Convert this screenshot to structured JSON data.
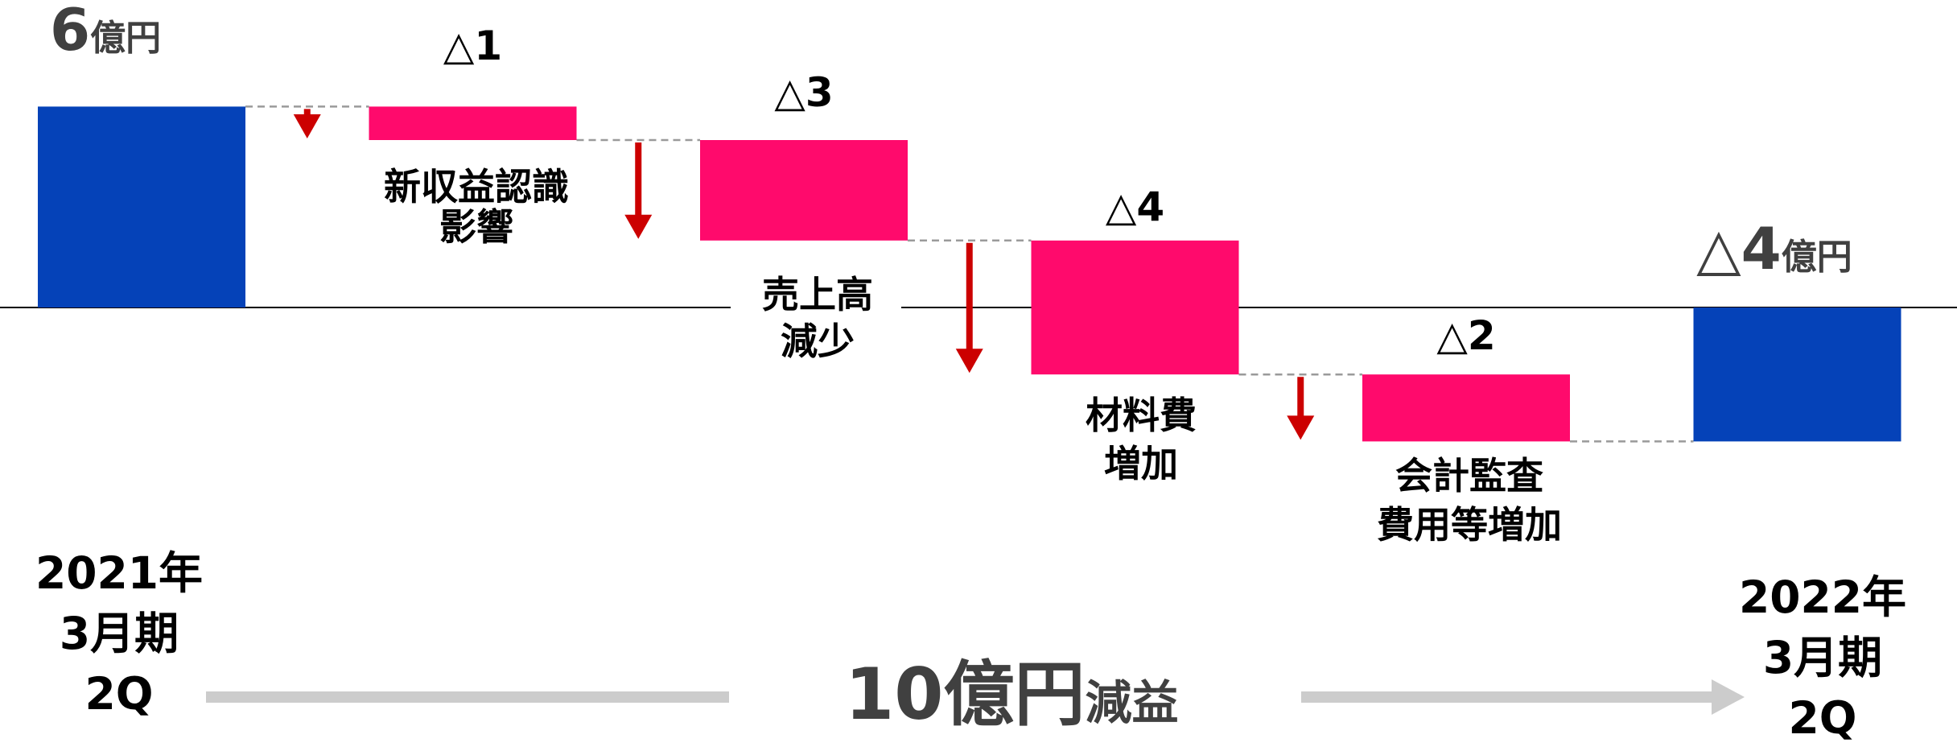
{
  "chart_data": {
    "type": "bar",
    "subtype": "waterfall",
    "unit": "億円",
    "categories": [
      "2021年3月期2Q",
      "新収益認識影響",
      "売上高減少",
      "材料費増加",
      "会計監査費用等増加",
      "2022年3月期2Q"
    ],
    "steps": [
      {
        "kind": "total",
        "value": 6,
        "value_label_number": "6",
        "value_label_unit": "億円",
        "label_lines": [
          "2021年",
          "3月期",
          "2Q"
        ]
      },
      {
        "kind": "delta",
        "value": -1,
        "value_label": "△1",
        "label_lines": [
          "新収益認識",
          "影響"
        ]
      },
      {
        "kind": "delta",
        "value": -3,
        "value_label": "△3",
        "label_lines": [
          "売上高",
          "減少"
        ]
      },
      {
        "kind": "delta",
        "value": -4,
        "value_label": "△4",
        "label_lines": [
          "材料費",
          "増加"
        ]
      },
      {
        "kind": "delta",
        "value": -2,
        "value_label": "△2",
        "label_lines": [
          "会計監査",
          "費用等増加"
        ]
      },
      {
        "kind": "total",
        "value": -4,
        "value_label_number": "△4",
        "value_label_unit": "億円",
        "label_lines": [
          "2022年",
          "3月期",
          "2Q"
        ]
      }
    ],
    "ylim": [
      -6,
      8
    ],
    "summary": {
      "number": "10億円",
      "suffix": "減益"
    },
    "colors": {
      "total": "#0542b8",
      "decrease": "#ff0a6c",
      "arrow": "#cc0000",
      "connector": "#9a9a9a",
      "baseline": "#000000",
      "summary_arrow": "#cccccc",
      "text_dark": "#404040",
      "text": "#000000"
    }
  }
}
